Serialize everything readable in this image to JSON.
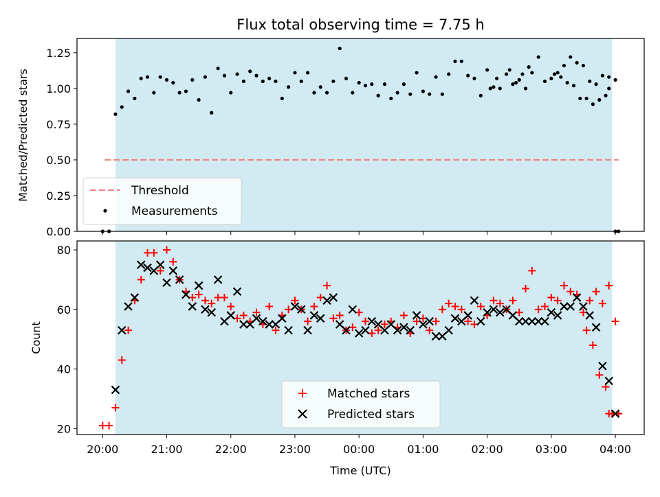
{
  "chart_data": [
    {
      "type": "scatter",
      "title": "Flux total observing time = 7.75 h",
      "ylabel": "Matched/Predicted stars",
      "xlabel": "",
      "x_tick_labels": [
        "20:00",
        "21:00",
        "22:00",
        "23:00",
        "00:00",
        "01:00",
        "02:00",
        "03:00",
        "04:00"
      ],
      "xlim_hours": [
        19.6,
        28.45
      ],
      "ylim": [
        0,
        1.35
      ],
      "y_ticks": [
        0.0,
        0.25,
        0.5,
        0.75,
        1.0,
        1.25
      ],
      "y_tick_labels": [
        "0.00",
        "0.25",
        "0.50",
        "0.75",
        "1.00",
        "1.25"
      ],
      "shaded_region_hours": [
        20.2,
        27.95
      ],
      "legend_position": "lower-left",
      "threshold": {
        "name": "Threshold",
        "value": 0.5,
        "x_start": 20.03,
        "x_end": 28.05,
        "color": "#f08080"
      },
      "series": [
        {
          "name": "Measurements",
          "color": "#000000",
          "marker": "dot",
          "x": [
            20.0,
            20.1,
            20.2,
            20.3,
            20.4,
            20.5,
            20.6,
            20.7,
            20.8,
            20.9,
            21.0,
            21.1,
            21.2,
            21.3,
            21.4,
            21.5,
            21.6,
            21.7,
            21.8,
            21.9,
            22.0,
            22.1,
            22.2,
            22.3,
            22.4,
            22.5,
            22.6,
            22.7,
            22.8,
            22.9,
            23.0,
            23.1,
            23.2,
            23.3,
            23.4,
            23.5,
            23.6,
            23.7,
            23.8,
            23.9,
            24.0,
            24.1,
            24.2,
            24.3,
            24.4,
            24.5,
            24.6,
            24.7,
            24.8,
            24.9,
            25.0,
            25.1,
            25.2,
            25.3,
            25.4,
            25.5,
            25.6,
            25.7,
            25.8,
            25.9,
            26.0,
            26.1,
            26.2,
            26.3,
            26.4,
            26.5,
            26.6,
            26.7,
            26.8,
            26.9,
            27.0,
            27.1,
            27.2,
            27.3,
            27.4,
            27.5,
            27.6,
            27.7,
            27.8,
            27.9,
            28.0
          ],
          "y": [
            0.0,
            0.0,
            0.82,
            0.87,
            0.98,
            0.93,
            1.07,
            1.08,
            0.97,
            1.08,
            1.06,
            1.04,
            0.97,
            0.98,
            1.06,
            0.92,
            1.08,
            0.83,
            1.14,
            1.09,
            0.97,
            1.1,
            1.05,
            1.12,
            1.09,
            1.05,
            1.07,
            1.05,
            0.93,
            1.01,
            1.11,
            1.05,
            1.11,
            0.97,
            1.01,
            0.97,
            1.05,
            1.28,
            1.07,
            0.97,
            1.04,
            1.02,
            1.03,
            0.95,
            1.03,
            0.93,
            0.97,
            1.03,
            0.96,
            1.11,
            0.98,
            0.96,
            1.08,
            0.96,
            1.1,
            1.19,
            1.19,
            1.09,
            1.07,
            0.95,
            1.13,
            1.01,
            1.0,
            1.1,
            1.03,
            1.06,
            1.0,
            1.11,
            1.22,
            1.05,
            1.07,
            1.11,
            1.16,
            1.22,
            1.18,
            1.16,
            1.05,
            1.03,
            1.09,
            1.08,
            1.06
          ],
          "x_tail": [
            26.05,
            26.15,
            26.35,
            26.45,
            26.55,
            26.65,
            27.05,
            27.15,
            27.25,
            27.35,
            27.45,
            27.55,
            27.65,
            27.75,
            27.85,
            27.9,
            28.0,
            28.05
          ],
          "y_tail": [
            1.0,
            1.07,
            1.13,
            1.04,
            1.1,
            1.15,
            1.1,
            1.08,
            1.04,
            1.02,
            0.93,
            0.93,
            0.89,
            0.92,
            0.95,
            1.0,
            0.0,
            0.0
          ]
        }
      ]
    },
    {
      "type": "scatter",
      "title": "",
      "ylabel": "Count",
      "xlabel": "Time (UTC)",
      "x_tick_labels": [
        "20:00",
        "21:00",
        "22:00",
        "23:00",
        "00:00",
        "01:00",
        "02:00",
        "03:00",
        "04:00"
      ],
      "xlim_hours": [
        19.6,
        28.45
      ],
      "ylim": [
        18,
        83
      ],
      "y_ticks": [
        20,
        40,
        60,
        80
      ],
      "y_tick_labels": [
        "20",
        "40",
        "60",
        "80"
      ],
      "shaded_region_hours": [
        20.2,
        27.95
      ],
      "legend_position": "lower-center",
      "series": [
        {
          "name": "Matched stars",
          "color": "#ff0000",
          "marker": "plus",
          "x": [
            20.0,
            20.1,
            20.2,
            20.3,
            20.4,
            20.5,
            20.6,
            20.7,
            20.8,
            20.9,
            21.0,
            21.1,
            21.2,
            21.3,
            21.4,
            21.5,
            21.6,
            21.7,
            21.8,
            21.9,
            22.0,
            22.1,
            22.2,
            22.3,
            22.4,
            22.5,
            22.6,
            22.7,
            22.8,
            22.9,
            23.0,
            23.1,
            23.2,
            23.3,
            23.4,
            23.5,
            23.6,
            23.7,
            23.8,
            23.9,
            24.0,
            24.1,
            24.2,
            24.3,
            24.4,
            24.5,
            24.6,
            24.7,
            24.8,
            24.9,
            25.0,
            25.1,
            25.2,
            25.3,
            25.4,
            25.5,
            25.6,
            25.7,
            25.8,
            25.9,
            26.0,
            26.1,
            26.2,
            26.3,
            26.4,
            26.5,
            26.6,
            26.7,
            26.8,
            26.9,
            27.0,
            27.1,
            27.2,
            27.3,
            27.4,
            27.5,
            27.6,
            27.7,
            27.8,
            27.9,
            28.0
          ],
          "y": [
            21,
            21,
            27,
            43,
            53,
            63,
            70,
            79,
            79,
            73,
            80,
            76,
            70,
            66,
            64,
            65,
            63,
            62,
            64,
            64,
            61,
            57,
            58,
            56,
            59,
            55,
            61,
            53,
            58,
            60,
            63,
            60,
            56,
            61,
            64,
            68,
            57,
            58,
            53,
            54,
            59,
            56,
            52,
            53,
            55,
            56,
            54,
            58,
            52,
            56,
            57,
            53,
            56,
            60,
            62,
            61,
            60,
            56,
            55,
            61,
            58,
            63,
            62,
            60,
            63,
            59,
            67,
            73,
            60,
            61,
            64,
            63,
            68,
            66,
            65,
            59,
            63,
            66,
            62,
            68,
            56
          ],
          "x_tail": [
            27.55,
            27.65,
            27.75,
            27.85,
            27.9,
            27.95,
            28.05
          ],
          "y_tail": [
            53,
            48,
            38,
            34,
            25,
            25,
            25
          ]
        },
        {
          "name": "Predicted stars",
          "color": "#000000",
          "marker": "x",
          "x": [
            20.2,
            20.3,
            20.4,
            20.5,
            20.6,
            20.7,
            20.8,
            20.9,
            21.0,
            21.1,
            21.2,
            21.3,
            21.4,
            21.5,
            21.6,
            21.7,
            21.8,
            21.9,
            22.0,
            22.1,
            22.2,
            22.3,
            22.4,
            22.5,
            22.6,
            22.7,
            22.8,
            22.9,
            23.0,
            23.1,
            23.2,
            23.3,
            23.4,
            23.5,
            23.6,
            23.7,
            23.8,
            23.9,
            24.0,
            24.1,
            24.2,
            24.3,
            24.4,
            24.5,
            24.6,
            24.7,
            24.8,
            24.9,
            25.0,
            25.1,
            25.2,
            25.3,
            25.4,
            25.5,
            25.6,
            25.7,
            25.8,
            25.9,
            26.0,
            26.1,
            26.2,
            26.3,
            26.4,
            26.5,
            26.6,
            26.7,
            26.8,
            26.9,
            27.0,
            27.1,
            27.2,
            27.3,
            27.4,
            27.5,
            27.6,
            27.7,
            27.8,
            27.9,
            28.0
          ],
          "y": [
            33,
            53,
            61,
            64,
            75,
            74,
            73,
            75,
            69,
            73,
            70,
            65,
            61,
            68,
            60,
            59,
            70,
            56,
            58,
            66,
            55,
            55,
            57,
            56,
            55,
            55,
            57,
            53,
            61,
            60,
            53,
            58,
            57,
            63,
            64,
            55,
            53,
            60,
            52,
            53,
            56,
            55,
            53,
            55,
            53,
            54,
            53,
            58,
            55,
            56,
            51,
            51,
            53,
            57,
            56,
            58,
            63,
            56,
            59,
            60,
            59,
            60,
            58,
            56,
            56,
            56,
            56,
            56,
            59,
            58,
            61,
            61,
            64,
            61,
            58,
            54,
            41,
            36,
            25
          ],
          "x_tail": [],
          "y_tail": []
        }
      ]
    }
  ]
}
